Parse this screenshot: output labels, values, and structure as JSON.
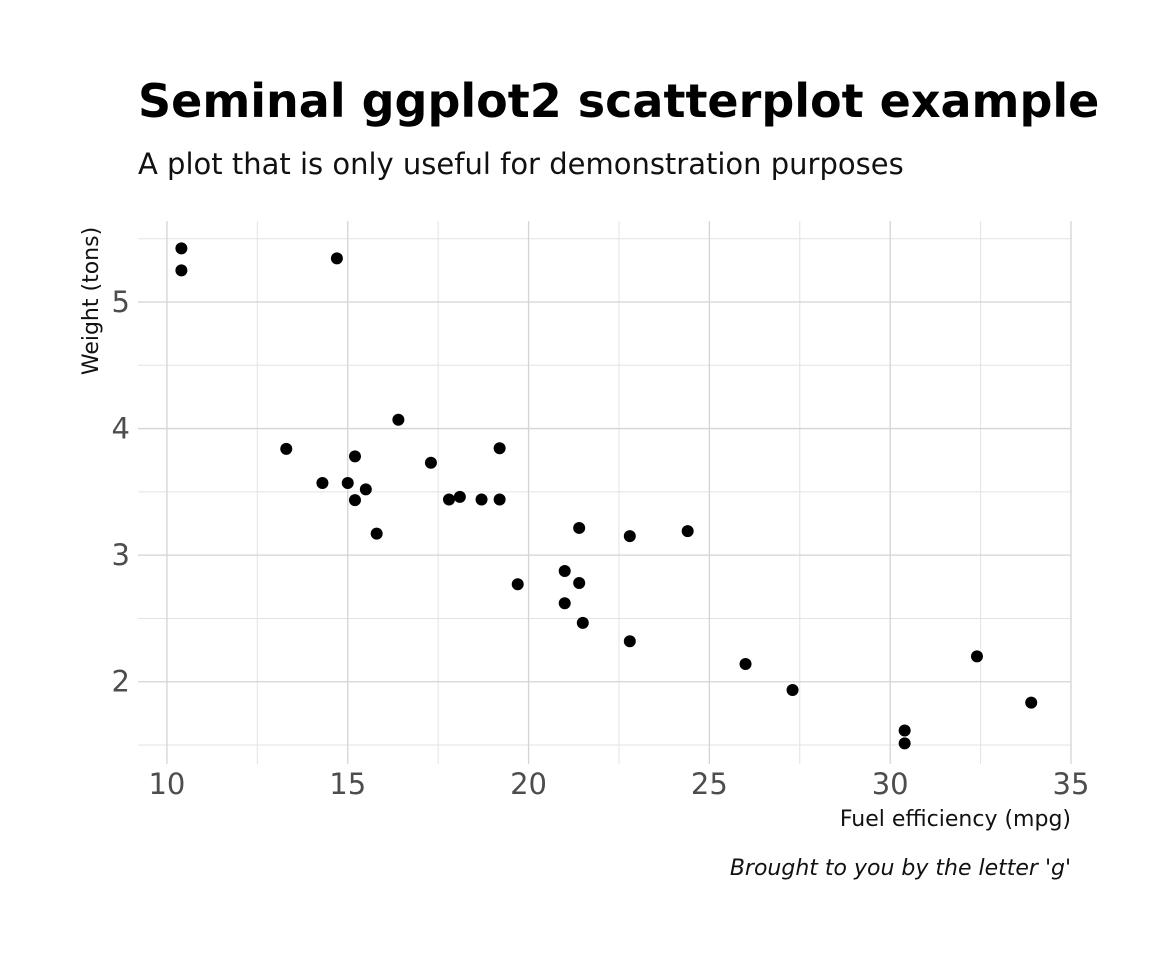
{
  "chart_data": {
    "type": "scatter",
    "title": "Seminal ggplot2 scatterplot example",
    "subtitle": "A plot that is only useful for demonstration purposes",
    "xlabel": "Fuel efficiency (mpg)",
    "ylabel": "Weight (tons)",
    "caption": "Brought to you by the letter 'g'",
    "xlim": [
      9.2,
      35.0
    ],
    "ylim": [
      1.35,
      5.64
    ],
    "x_ticks": [
      "10",
      "15",
      "20",
      "25",
      "30",
      "35"
    ],
    "y_ticks": [
      "2",
      "3",
      "4",
      "5"
    ],
    "grid": true,
    "point_color": "#000000",
    "points": [
      {
        "x": 10.4,
        "y": 5.424
      },
      {
        "x": 10.4,
        "y": 5.25
      },
      {
        "x": 14.7,
        "y": 5.345
      },
      {
        "x": 13.3,
        "y": 3.84
      },
      {
        "x": 14.3,
        "y": 3.57
      },
      {
        "x": 15.0,
        "y": 3.57
      },
      {
        "x": 15.2,
        "y": 3.78
      },
      {
        "x": 15.2,
        "y": 3.435
      },
      {
        "x": 15.5,
        "y": 3.52
      },
      {
        "x": 15.8,
        "y": 3.17
      },
      {
        "x": 16.4,
        "y": 4.07
      },
      {
        "x": 17.3,
        "y": 3.73
      },
      {
        "x": 17.8,
        "y": 3.44
      },
      {
        "x": 18.1,
        "y": 3.46
      },
      {
        "x": 18.7,
        "y": 3.44
      },
      {
        "x": 19.2,
        "y": 3.44
      },
      {
        "x": 19.2,
        "y": 3.845
      },
      {
        "x": 19.7,
        "y": 2.77
      },
      {
        "x": 21.0,
        "y": 2.62
      },
      {
        "x": 21.0,
        "y": 2.875
      },
      {
        "x": 21.4,
        "y": 3.215
      },
      {
        "x": 21.4,
        "y": 2.78
      },
      {
        "x": 21.5,
        "y": 2.465
      },
      {
        "x": 22.8,
        "y": 3.15
      },
      {
        "x": 22.8,
        "y": 2.32
      },
      {
        "x": 24.4,
        "y": 3.19
      },
      {
        "x": 26.0,
        "y": 2.14
      },
      {
        "x": 27.3,
        "y": 1.935
      },
      {
        "x": 30.4,
        "y": 1.615
      },
      {
        "x": 30.4,
        "y": 1.513
      },
      {
        "x": 32.4,
        "y": 2.2
      },
      {
        "x": 33.9,
        "y": 1.835
      }
    ]
  }
}
